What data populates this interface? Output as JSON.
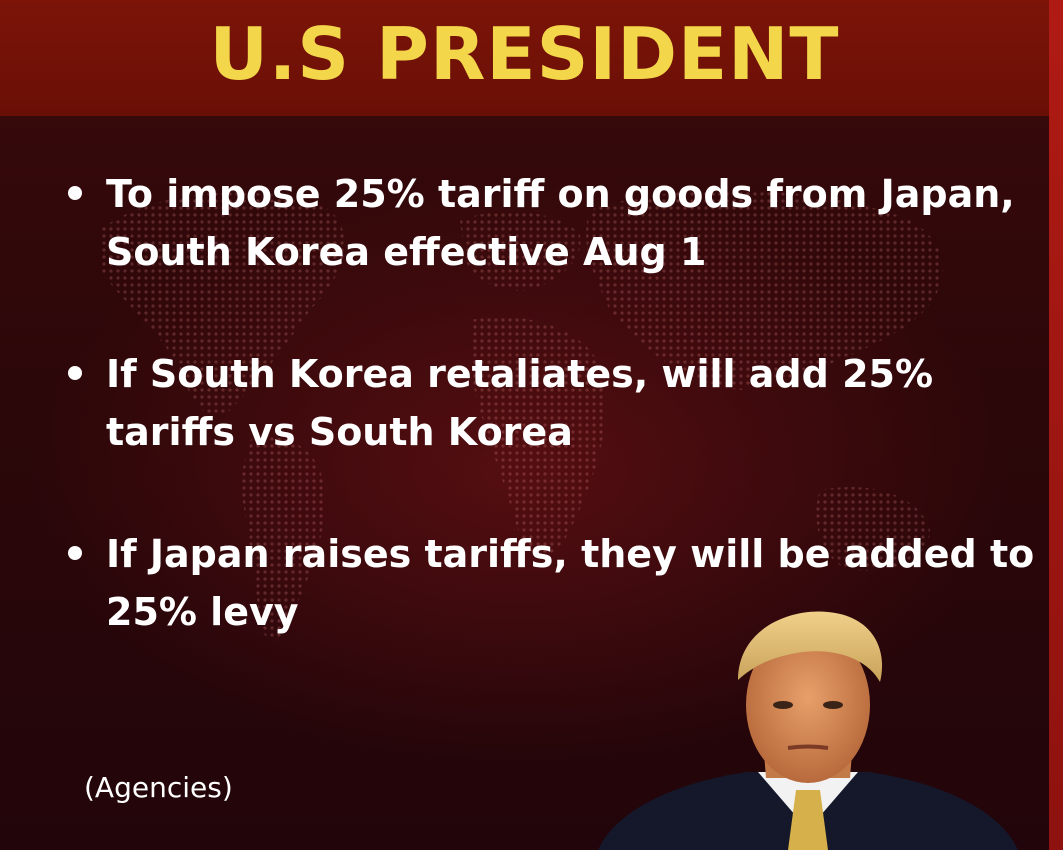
{
  "header": {
    "title": "U.S PRESIDENT"
  },
  "bullets": [
    "To impose 25% tariff on goods from Japan, South Korea effective Aug 1",
    "If South Korea retaliates, will add 25% tariffs vs South Korea",
    "If Japan raises tariffs, they will be added to 25% levy"
  ],
  "source": "(Agencies)",
  "colors": {
    "background": "#2c0709",
    "header_band": "#7c1408",
    "title_text": "#f4d64a",
    "body_text": "#ffffff",
    "right_edge": "#b01a14"
  },
  "images": {
    "portrait": "portrait-photo",
    "background": "world-map-dot-pattern"
  }
}
